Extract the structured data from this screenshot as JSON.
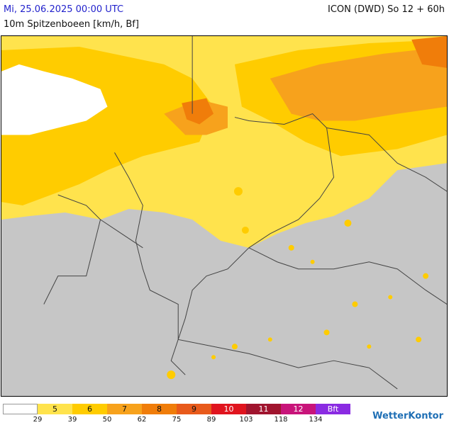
{
  "header": {
    "date": "Mi, 25.06.2025 00:00 UTC",
    "model": "ICON (DWD) So 12 + 60h",
    "parameter": "10m Spitzenboeen [km/h, Bf]"
  },
  "legend": {
    "classes": [
      {
        "label": "",
        "color": "#ffffff"
      },
      {
        "label": "5",
        "color": "#ffe34d"
      },
      {
        "label": "6",
        "color": "#ffcc00"
      },
      {
        "label": "7",
        "color": "#f7a21c"
      },
      {
        "label": "8",
        "color": "#f07d0a"
      },
      {
        "label": "9",
        "color": "#e85a1b"
      },
      {
        "label": "10",
        "color": "#e0141e"
      },
      {
        "label": "11",
        "color": "#a0142e"
      },
      {
        "label": "12",
        "color": "#c8147a"
      },
      {
        "label": "Bft",
        "color": "#8a2be2"
      }
    ],
    "ticks": [
      "29",
      "39",
      "50",
      "62",
      "75",
      "89",
      "103",
      "118",
      "134"
    ]
  },
  "logo": "WetterKontor"
}
